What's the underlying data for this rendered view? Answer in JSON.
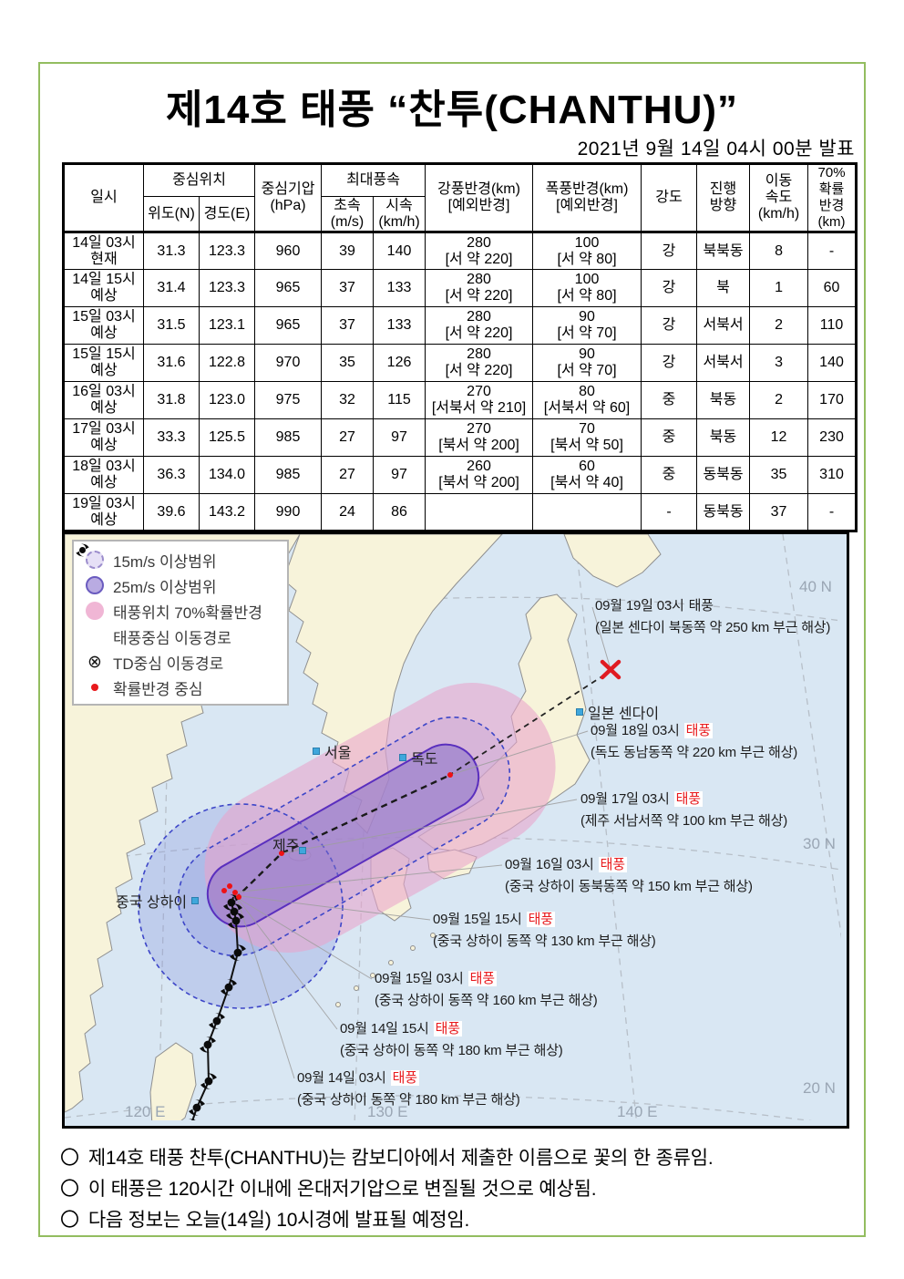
{
  "title": "제14호 태풍 “찬투(CHANTHU)”",
  "issued": "2021년 9월 14일 04시 00분 발표",
  "table": {
    "h": {
      "time": "일시",
      "center": "중심위치",
      "lat": "위도(N)",
      "lon": "경도(E)",
      "pres1": "중심기압",
      "pres2": "(hPa)",
      "maxwind": "최대풍속",
      "ms1": "초속",
      "ms2": "(m/s)",
      "kmh1": "시속",
      "kmh2": "(km/h)",
      "r15a": "강풍반경(km)",
      "r15b": "[예외반경]",
      "r25a": "폭풍반경(km)",
      "r25b": "[예외반경]",
      "inten": "강도",
      "dir1": "진행",
      "dir2": "방향",
      "spd1": "이동",
      "spd2": "속도",
      "spd3": "(km/h)",
      "p1": "70%",
      "p2": "확률",
      "p3": "반경",
      "p4": "(km)"
    },
    "rows": [
      {
        "time1": "14일 03시",
        "time2": "현재",
        "lat": "31.3",
        "lon": "123.3",
        "pressure": "960",
        "wind_ms": "39",
        "wind_kmh": "140",
        "r15": "280",
        "r15_ex": "[서 약 220]",
        "r25": "100",
        "r25_ex": "[서 약 80]",
        "intensity": "강",
        "direction": "북북동",
        "speed": "8",
        "prob70": "-"
      },
      {
        "time1": "14일 15시",
        "time2": "예상",
        "lat": "31.4",
        "lon": "123.3",
        "pressure": "965",
        "wind_ms": "37",
        "wind_kmh": "133",
        "r15": "280",
        "r15_ex": "[서 약 220]",
        "r25": "100",
        "r25_ex": "[서 약 80]",
        "intensity": "강",
        "direction": "북",
        "speed": "1",
        "prob70": "60"
      },
      {
        "time1": "15일 03시",
        "time2": "예상",
        "lat": "31.5",
        "lon": "123.1",
        "pressure": "965",
        "wind_ms": "37",
        "wind_kmh": "133",
        "r15": "280",
        "r15_ex": "[서 약 220]",
        "r25": "90",
        "r25_ex": "[서 약 70]",
        "intensity": "강",
        "direction": "서북서",
        "speed": "2",
        "prob70": "110"
      },
      {
        "time1": "15일 15시",
        "time2": "예상",
        "lat": "31.6",
        "lon": "122.8",
        "pressure": "970",
        "wind_ms": "35",
        "wind_kmh": "126",
        "r15": "280",
        "r15_ex": "[서 약 220]",
        "r25": "90",
        "r25_ex": "[서 약 70]",
        "intensity": "강",
        "direction": "서북서",
        "speed": "3",
        "prob70": "140"
      },
      {
        "time1": "16일 03시",
        "time2": "예상",
        "lat": "31.8",
        "lon": "123.0",
        "pressure": "975",
        "wind_ms": "32",
        "wind_kmh": "115",
        "r15": "270",
        "r15_ex": "[서북서 약 210]",
        "r25": "80",
        "r25_ex": "[서북서 약 60]",
        "intensity": "중",
        "direction": "북동",
        "speed": "2",
        "prob70": "170"
      },
      {
        "time1": "17일 03시",
        "time2": "예상",
        "lat": "33.3",
        "lon": "125.5",
        "pressure": "985",
        "wind_ms": "27",
        "wind_kmh": "97",
        "r15": "270",
        "r15_ex": "[북서 약 200]",
        "r25": "70",
        "r25_ex": "[북서 약 50]",
        "intensity": "중",
        "direction": "북동",
        "speed": "12",
        "prob70": "230"
      },
      {
        "time1": "18일 03시",
        "time2": "예상",
        "lat": "36.3",
        "lon": "134.0",
        "pressure": "985",
        "wind_ms": "27",
        "wind_kmh": "97",
        "r15": "260",
        "r15_ex": "[북서 약 200]",
        "r25": "60",
        "r25_ex": "[북서 약 40]",
        "intensity": "중",
        "direction": "동북동",
        "speed": "35",
        "prob70": "310"
      },
      {
        "time1": "19일 03시",
        "time2": "예상",
        "lat": "39.6",
        "lon": "143.2",
        "pressure": "990",
        "wind_ms": "24",
        "wind_kmh": "86",
        "r15": "",
        "r15_ex": "",
        "r25": "",
        "r25_ex": "",
        "intensity": "-",
        "direction": "동북동",
        "speed": "37",
        "prob70": "-"
      }
    ]
  },
  "map": {
    "legend": [
      {
        "icon": "dashed-circle-icon",
        "label": "15m/s 이상범위",
        "glyph": ""
      },
      {
        "icon": "solid-circle-icon",
        "label": "25m/s 이상범위",
        "glyph": ""
      },
      {
        "icon": "pink-circle-icon",
        "label": "태풍위치 70%확률반경",
        "glyph": ""
      },
      {
        "icon": "typhoon-icon",
        "label": "태풍중심 이동경로",
        "glyph": ""
      },
      {
        "icon": "td-icon",
        "label": "TD중심 이동경로",
        "glyph": "⊗"
      },
      {
        "icon": "red-dot-icon",
        "label": "확률반경 중심",
        "glyph": ""
      }
    ],
    "grid": [
      {
        "label": "40 N"
      },
      {
        "label": "30 N"
      },
      {
        "label": "20 N"
      },
      {
        "label": "120 E"
      },
      {
        "label": "130 E"
      },
      {
        "label": "140 E"
      }
    ],
    "places": [
      {
        "name": "서울"
      },
      {
        "name": "독도"
      },
      {
        "name": "제주"
      },
      {
        "name": "중국 상하이"
      },
      {
        "name": "일본 센다이"
      }
    ],
    "annotations": [
      {
        "time": "09월 14일 03시",
        "keyword": "태풍",
        "location": "(중국 상하이 동쪽 약 180 km 부근 해상)",
        "red": true
      },
      {
        "time": "09월 14일 15시",
        "keyword": "태풍",
        "location": "(중국 상하이 동쪽 약 180 km 부근 해상)",
        "red": true
      },
      {
        "time": "09월 15일 03시",
        "keyword": "태풍",
        "location": "(중국 상하이 동쪽 약 160 km 부근 해상)",
        "red": true
      },
      {
        "time": "09월 15일 15시",
        "keyword": "태풍",
        "location": "(중국 상하이 동쪽 약 130 km 부근 해상)",
        "red": true
      },
      {
        "time": "09월 16일 03시",
        "keyword": "태풍",
        "location": "(중국 상하이 동북동쪽 약 150 km 부근 해상)",
        "red": true
      },
      {
        "time": "09월 17일 03시",
        "keyword": "태풍",
        "location": "(제주 서남서쪽 약 100 km 부근 해상)",
        "red": true
      },
      {
        "time": "09월 18일 03시",
        "keyword": "태풍",
        "location": "(독도 동남동쪽 약 220 km 부근 해상)",
        "red": true
      },
      {
        "time": "09월 19일 03시",
        "keyword": "태풍",
        "location": "(일본 센다이 북동쪽 약 250 km 부근 해상)",
        "red": false
      }
    ]
  },
  "notes": {
    "bullet": "〇",
    "items": [
      "제14호 태풍 찬투(CHANTHU)는 캄보디아에서 제출한 이름으로 꽃의 한 종류임.",
      "이 태풍은 120시간 이내에 온대저기압으로 변질될 것으로 예상됨.",
      "다음 정보는 오늘(14일) 10시경에 발표될 예정임."
    ]
  }
}
